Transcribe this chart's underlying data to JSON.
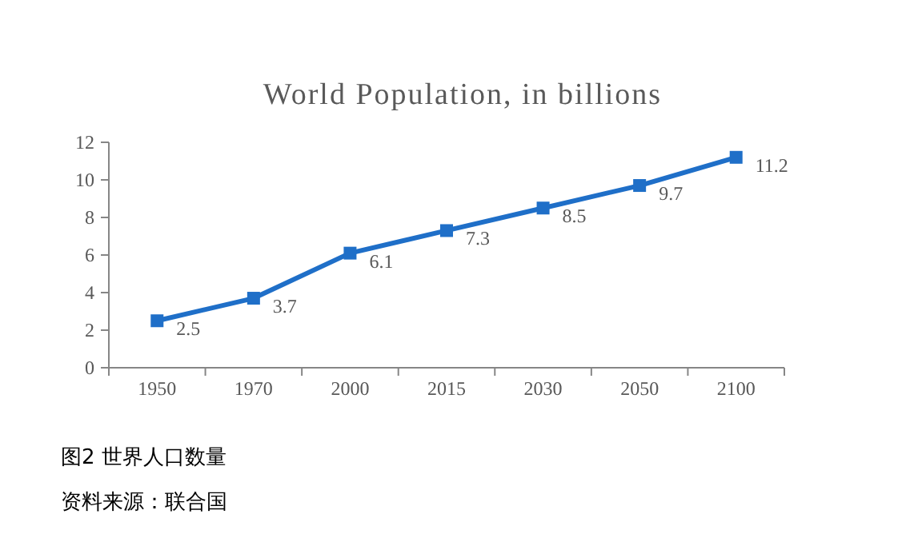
{
  "chart_data": {
    "type": "line",
    "title": "World Population, in billions",
    "categories": [
      "1950",
      "1970",
      "2000",
      "2015",
      "2030",
      "2050",
      "2100"
    ],
    "series": [
      {
        "color": "#1f6fc8",
        "values": [
          2.5,
          3.7,
          6.1,
          7.3,
          8.5,
          9.7,
          11.2
        ]
      }
    ],
    "ylim": [
      0,
      12
    ],
    "yticks": [
      0,
      2,
      4,
      6,
      8,
      10,
      12
    ],
    "marker": "square",
    "data_labels": true,
    "grid": false,
    "annotations": [
      "图2 世界人口数量",
      "资料来源：联合国"
    ]
  }
}
